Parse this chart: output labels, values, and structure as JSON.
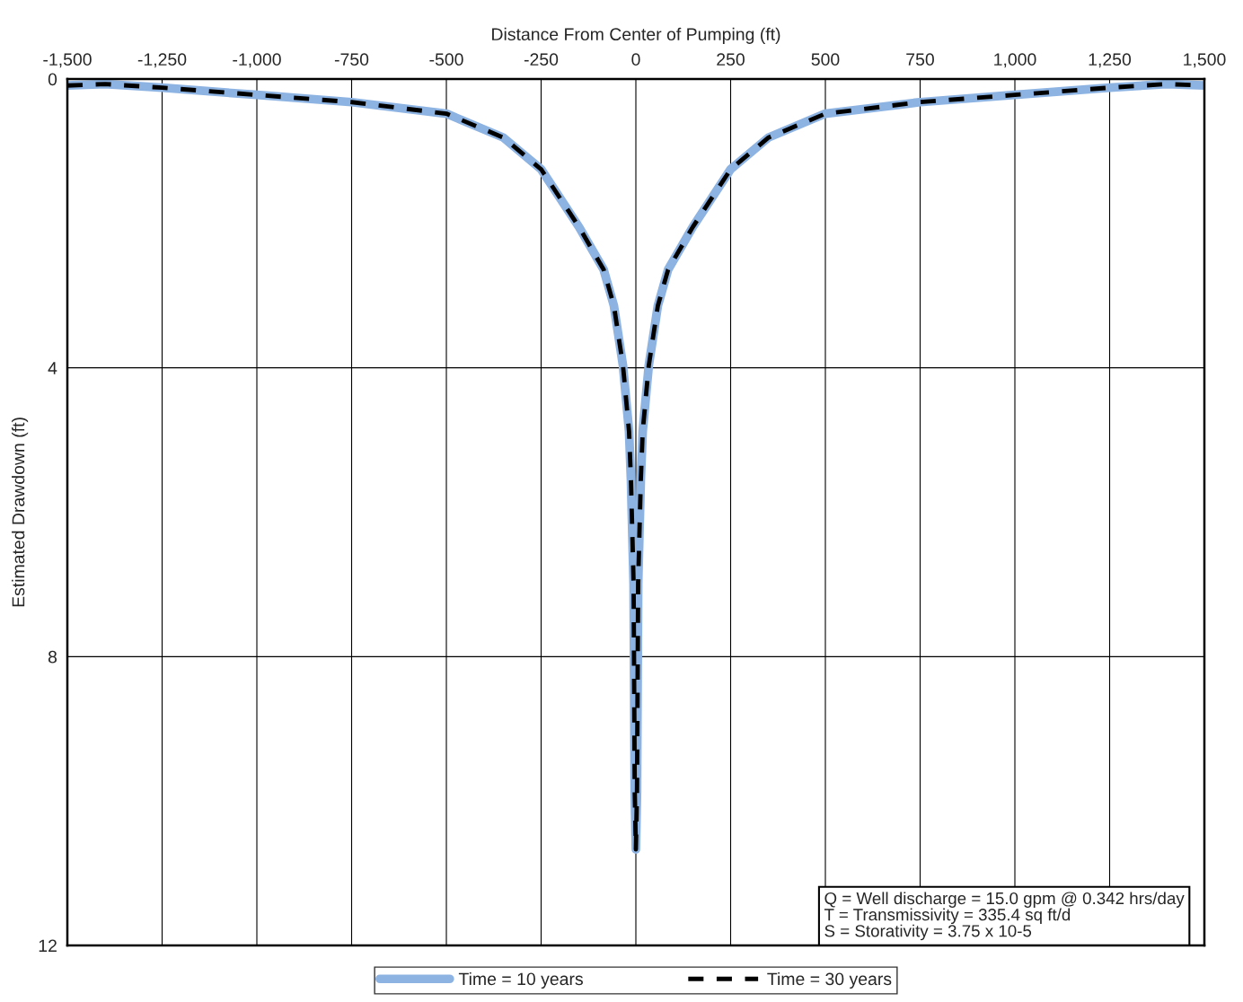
{
  "chart_data": {
    "type": "line",
    "xlabel": "Distance From Center of Pumping (ft)",
    "ylabel": "Estimated Drawdown (ft)",
    "x": [
      -1500,
      -1400,
      -1250,
      -1000,
      -750,
      -500,
      -350,
      -250,
      -150,
      -85,
      -58,
      -34,
      -18,
      -13,
      -6,
      -3,
      0,
      3,
      6,
      13,
      18,
      34,
      58,
      85,
      150,
      250,
      350,
      500,
      750,
      1000,
      1250,
      1400,
      1500
    ],
    "series": [
      {
        "name": "Time = 10 years",
        "color": "#8db3e2",
        "line_style": "solid",
        "values": [
          0.09,
          0.07,
          0.12,
          0.22,
          0.32,
          0.48,
          0.81,
          1.25,
          2.05,
          2.64,
          3.14,
          3.97,
          4.88,
          5.55,
          6.99,
          9.86,
          10.67,
          9.86,
          6.99,
          5.55,
          4.88,
          3.97,
          3.14,
          2.64,
          2.05,
          1.25,
          0.81,
          0.48,
          0.32,
          0.22,
          0.12,
          0.07,
          0.09
        ]
      },
      {
        "name": "Time = 30 years",
        "color": "#000000",
        "line_style": "dashed",
        "values": [
          0.09,
          0.07,
          0.12,
          0.22,
          0.32,
          0.48,
          0.81,
          1.25,
          2.05,
          2.64,
          3.14,
          3.97,
          4.88,
          5.55,
          6.99,
          9.86,
          10.67,
          9.86,
          6.99,
          5.55,
          4.88,
          3.97,
          3.14,
          2.64,
          2.05,
          1.25,
          0.81,
          0.48,
          0.32,
          0.22,
          0.12,
          0.07,
          0.09
        ]
      }
    ],
    "xlim": [
      -1500,
      1500
    ],
    "xticks": [
      {
        "value": -1500,
        "label": "-1,500"
      },
      {
        "value": -1250,
        "label": "-1,250"
      },
      {
        "value": -1000,
        "label": "-1,000"
      },
      -750,
      -500,
      -250,
      0,
      250,
      500,
      750,
      {
        "value": 1000,
        "label": "1,000"
      },
      {
        "value": 1250,
        "label": "1,250"
      },
      {
        "value": 1500,
        "label": "1,500"
      }
    ],
    "ylim": [
      12,
      0
    ],
    "yticks": [
      0,
      4,
      8,
      12
    ],
    "grid": true,
    "legend": "bottom",
    "marker": "none",
    "annotations": [
      "Q = Well discharge = 15.0 gpm @ 0.342 hrs/day",
      "T = Transmissivity = 335.4 sq ft/d",
      "S = Storativity = 3.75 x 10-5"
    ]
  }
}
